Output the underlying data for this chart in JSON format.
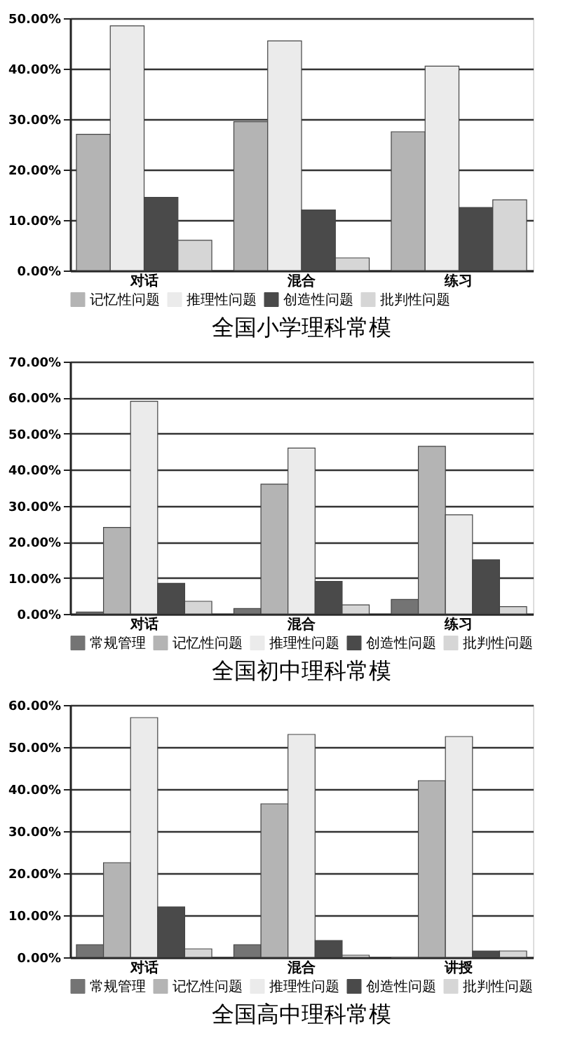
{
  "chart_data": [
    {
      "type": "bar",
      "title": "全国小学理科常模",
      "categories": [
        "对话",
        "混合",
        "练习"
      ],
      "series": [
        {
          "name": "记忆性问题",
          "color": "#b4b4b4",
          "values": [
            27,
            29.5,
            27.5
          ]
        },
        {
          "name": "推理性问题",
          "color": "#ebebeb",
          "values": [
            48.5,
            45.5,
            40.5
          ]
        },
        {
          "name": "创造性问题",
          "color": "#4a4a4a",
          "values": [
            14.5,
            12,
            12.5
          ]
        },
        {
          "name": "批判性问题",
          "color": "#d6d6d6",
          "values": [
            6,
            2.5,
            14
          ]
        }
      ],
      "ylim": [
        0,
        50
      ],
      "yticks": [
        {
          "value": 0,
          "label": "0.00%"
        },
        {
          "value": 10,
          "label": "10.00%"
        },
        {
          "value": 20,
          "label": "20.00%"
        },
        {
          "value": 30,
          "label": "30.00%"
        },
        {
          "value": 40,
          "label": "40.00%"
        },
        {
          "value": 50,
          "label": "50.00%"
        }
      ],
      "grid": "y",
      "legend": "bottom"
    },
    {
      "type": "bar",
      "title": "全国初中理科常模",
      "categories": [
        "对话",
        "混合",
        "练习"
      ],
      "series": [
        {
          "name": "常规管理",
          "color": "#747474",
          "values": [
            0.5,
            1.5,
            4
          ]
        },
        {
          "name": "记忆性问题",
          "color": "#b4b4b4",
          "values": [
            24,
            36,
            46.5
          ]
        },
        {
          "name": "推理性问题",
          "color": "#ebebeb",
          "values": [
            59,
            46,
            27.5
          ]
        },
        {
          "name": "创造性问题",
          "color": "#4a4a4a",
          "values": [
            8.5,
            9,
            15
          ]
        },
        {
          "name": "批判性问题",
          "color": "#d6d6d6",
          "values": [
            3.5,
            2.5,
            2
          ]
        }
      ],
      "ylim": [
        0,
        70
      ],
      "yticks": [
        {
          "value": 0,
          "label": "0.00%"
        },
        {
          "value": 10,
          "label": "10.00%"
        },
        {
          "value": 20,
          "label": "20.00%"
        },
        {
          "value": 30,
          "label": "30.00%"
        },
        {
          "value": 40,
          "label": "40.00%"
        },
        {
          "value": 50,
          "label": "50.00%"
        },
        {
          "value": 60,
          "label": "60.00%"
        },
        {
          "value": 70,
          "label": "70.00%"
        }
      ],
      "grid": "y",
      "legend": "bottom"
    },
    {
      "type": "bar",
      "title": "全国高中理科常模",
      "categories": [
        "对话",
        "混合",
        "讲授"
      ],
      "series": [
        {
          "name": "常规管理",
          "color": "#747474",
          "values": [
            3,
            3,
            0
          ]
        },
        {
          "name": "记忆性问题",
          "color": "#b4b4b4",
          "values": [
            22.5,
            36.5,
            42
          ]
        },
        {
          "name": "推理性问题",
          "color": "#ebebeb",
          "values": [
            57,
            53,
            52.5
          ]
        },
        {
          "name": "创造性问题",
          "color": "#4a4a4a",
          "values": [
            12,
            4,
            1.5
          ]
        },
        {
          "name": "批判性问题",
          "color": "#d6d6d6",
          "values": [
            2,
            0.5,
            1.5
          ]
        }
      ],
      "ylim": [
        0,
        60
      ],
      "yticks": [
        {
          "value": 0,
          "label": "0.00%"
        },
        {
          "value": 10,
          "label": "10.00%"
        },
        {
          "value": 20,
          "label": "20.00%"
        },
        {
          "value": 30,
          "label": "30.00%"
        },
        {
          "value": 40,
          "label": "40.00%"
        },
        {
          "value": 50,
          "label": "50.00%"
        },
        {
          "value": 60,
          "label": "60.00%"
        }
      ],
      "grid": "y",
      "legend": "bottom"
    }
  ]
}
